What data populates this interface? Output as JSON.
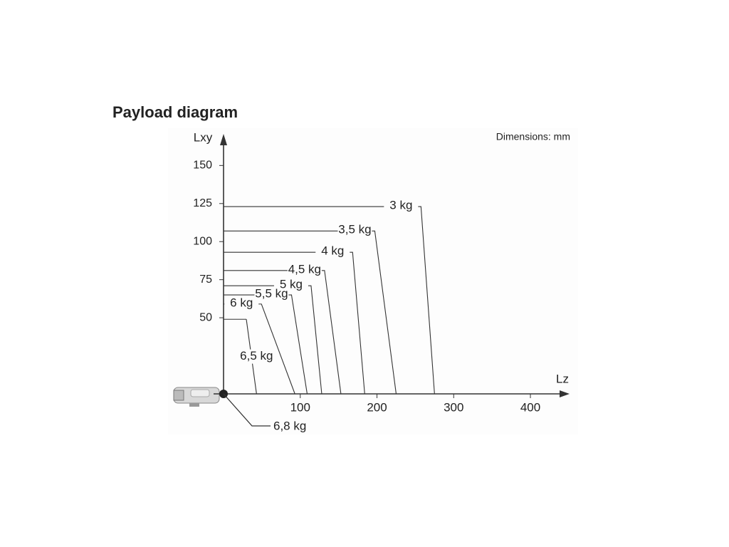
{
  "chart_data": {
    "type": "payload",
    "title": "Payload diagram",
    "note": "Dimensions: mm",
    "xlabel": "Lz",
    "ylabel": "Lxy",
    "categories": [
      "3 kg",
      "3,5 kg",
      "4 kg",
      "4,5 kg",
      "5 kg",
      "5,5 kg",
      "6 kg",
      "6,5 kg",
      "6,8 kg"
    ],
    "x": [
      275,
      225,
      184,
      153,
      128,
      109,
      93,
      43,
      0
    ],
    "values": [
      123,
      107,
      93,
      81,
      71,
      65,
      59,
      49,
      0
    ],
    "color": "#333333",
    "xlim": [
      0,
      451
    ],
    "ylim": [
      0,
      167
    ],
    "xticks": [
      100,
      200,
      300,
      400
    ],
    "yticks": [
      50,
      75,
      100,
      125,
      150
    ]
  }
}
